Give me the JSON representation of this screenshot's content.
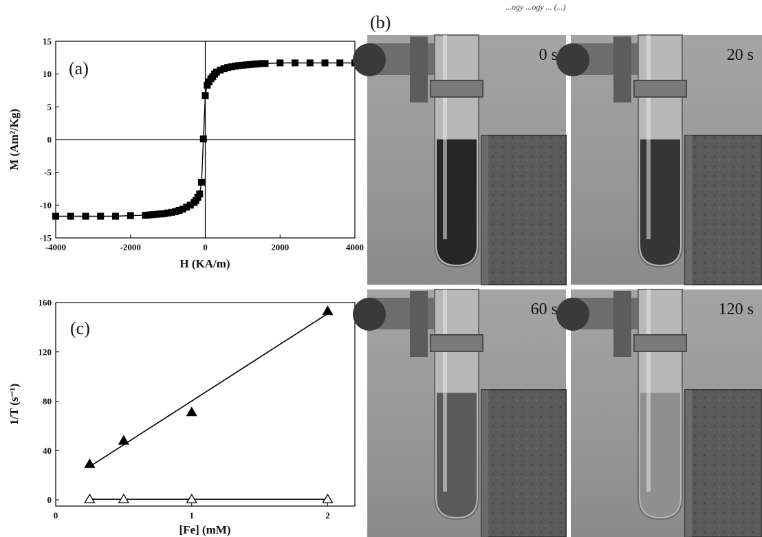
{
  "header": {
    "text": "...ogy ...ogy ... (...)"
  },
  "panels": {
    "a_label": "(a)",
    "b_label": "(b)",
    "c_label": "(c)"
  },
  "photos": [
    {
      "time_label": "0 s",
      "fill_level": 0.55,
      "liquid_color": "#262626"
    },
    {
      "time_label": "20 s",
      "fill_level": 0.55,
      "liquid_color": "#363636"
    },
    {
      "time_label": "60 s",
      "fill_level": 0.55,
      "liquid_color": "#5a5a5a"
    },
    {
      "time_label": "120 s",
      "fill_level": 0.55,
      "liquid_color": "#8f8f8f"
    }
  ],
  "chart_data": [
    {
      "id": "a",
      "type": "line",
      "xlabel": "H (KA/m)",
      "ylabel": "M (Am²/Kg)",
      "xlim": [
        -4000,
        4000
      ],
      "ylim": [
        -15,
        15
      ],
      "xticks": [
        -4000,
        -2000,
        0,
        2000,
        4000
      ],
      "yticks": [
        -15,
        -10,
        -5,
        0,
        5,
        10,
        15
      ],
      "marker": "filled-square",
      "series": [
        {
          "x": [
            -4000,
            -3600,
            -3200,
            -2800,
            -2400,
            -2000,
            -1600,
            -1500,
            -1400,
            -1300,
            -1200,
            -1100,
            -1000,
            -900,
            -800,
            -700,
            -600,
            -500,
            -400,
            -300,
            -250,
            -200,
            -150,
            -100,
            -50,
            0,
            50,
            100,
            150,
            200,
            250,
            300,
            400,
            500,
            600,
            700,
            800,
            900,
            1000,
            1100,
            1200,
            1300,
            1400,
            1500,
            1600,
            2000,
            2400,
            2800,
            3200,
            3600,
            4000
          ],
          "y": [
            -11.7,
            -11.7,
            -11.7,
            -11.7,
            -11.7,
            -11.6,
            -11.55,
            -11.5,
            -11.45,
            -11.4,
            -11.35,
            -11.3,
            -11.2,
            -11.1,
            -11.0,
            -10.8,
            -10.6,
            -10.3,
            -10.0,
            -9.6,
            -9.3,
            -8.8,
            -8.3,
            -6.5,
            0.1,
            6.7,
            8.3,
            8.8,
            9.3,
            9.6,
            10.0,
            10.3,
            10.6,
            10.8,
            11.0,
            11.1,
            11.2,
            11.3,
            11.35,
            11.4,
            11.45,
            11.5,
            11.55,
            11.6,
            11.6,
            11.7,
            11.7,
            11.7,
            11.7,
            11.7,
            11.7
          ]
        }
      ]
    },
    {
      "id": "c",
      "type": "scatter",
      "xlabel": "[Fe] (mM)",
      "ylabel": "1/T (s⁻¹)",
      "xlim": [
        0,
        2.2
      ],
      "ylim": [
        -5,
        160
      ],
      "xticks": [
        0,
        1,
        2
      ],
      "yticks": [
        0,
        40,
        80,
        120,
        160
      ],
      "series": [
        {
          "marker": "filled-triangle",
          "x": [
            0.25,
            0.5,
            1,
            2
          ],
          "y": [
            29,
            48,
            71,
            153
          ],
          "fit": [
            [
              0.25,
              27
            ],
            [
              2,
              151
            ]
          ]
        },
        {
          "marker": "open-triangle",
          "x": [
            0.25,
            0.5,
            1,
            2
          ],
          "y": [
            0.5,
            0.5,
            0.5,
            0.5
          ],
          "fit": [
            [
              0.25,
              0.5
            ],
            [
              2,
              0.5
            ]
          ]
        }
      ]
    }
  ]
}
